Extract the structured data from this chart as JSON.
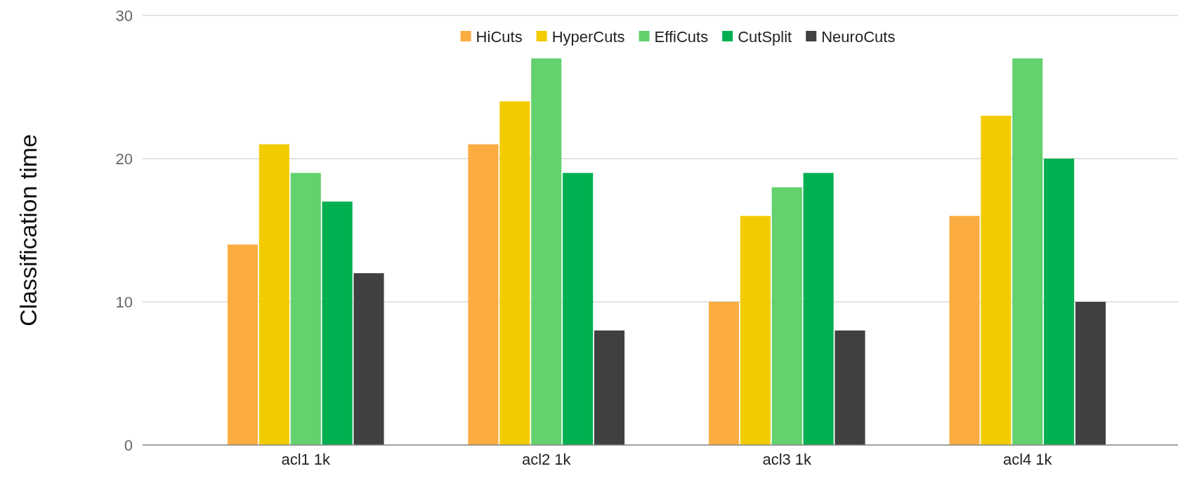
{
  "chart_data": {
    "type": "bar",
    "ylabel": "Classification time",
    "categories": [
      "acl1 1k",
      "acl2 1k",
      "acl3 1k",
      "acl4 1k"
    ],
    "series": [
      {
        "name": "HiCuts",
        "color": "#fbad42",
        "values": [
          14,
          21,
          10,
          16
        ]
      },
      {
        "name": "HyperCuts",
        "color": "#f2cc00",
        "values": [
          21,
          24,
          16,
          23
        ]
      },
      {
        "name": "EffiCuts",
        "color": "#63d16e",
        "values": [
          19,
          27,
          18,
          27
        ]
      },
      {
        "name": "CutSplit",
        "color": "#00b050",
        "values": [
          17,
          19,
          19,
          20
        ]
      },
      {
        "name": "NeuroCuts",
        "color": "#404040",
        "values": [
          12,
          8,
          8,
          10
        ]
      }
    ],
    "ylim": [
      0,
      30
    ],
    "yticks": [
      0,
      10,
      20,
      30
    ],
    "grid": "y",
    "legend": "top"
  }
}
